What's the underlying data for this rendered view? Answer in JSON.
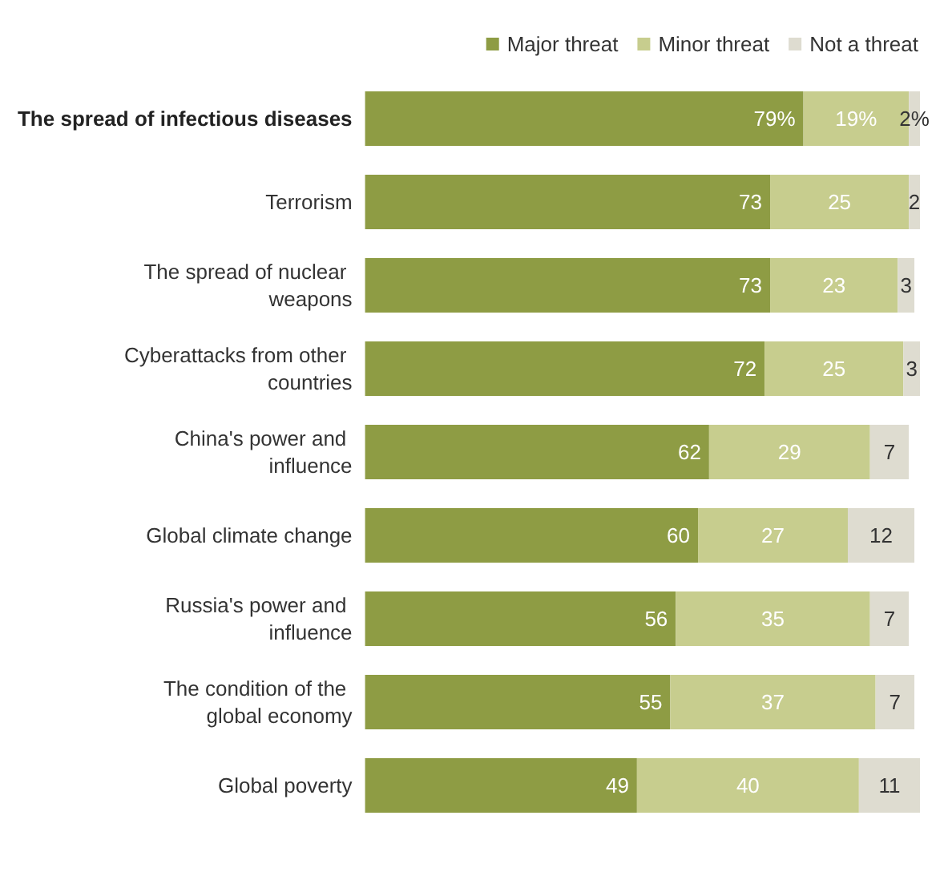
{
  "chart_data": {
    "type": "bar",
    "orientation": "horizontal",
    "stacked": true,
    "legend": "top right",
    "categories": [
      "The spread of infectious diseases",
      "Terrorism",
      "The spread of nuclear weapons",
      "Cyberattacks from other countries",
      "China's power and influence",
      "Global climate change",
      "Russia's power and influence",
      "The condition of the global economy",
      "Global poverty"
    ],
    "xlim": [
      0,
      100
    ],
    "series": [
      {
        "name": "Major threat",
        "color": "#8e9c44",
        "values": [
          79,
          73,
          73,
          72,
          62,
          60,
          56,
          55,
          49
        ],
        "value_labels": [
          "79%",
          "73",
          "73",
          "72",
          "62",
          "60",
          "56",
          "55",
          "49"
        ]
      },
      {
        "name": "Minor threat",
        "color": "#c7cd8e",
        "values": [
          19,
          25,
          23,
          25,
          29,
          27,
          35,
          37,
          40
        ],
        "value_labels": [
          "19%",
          "25",
          "23",
          "25",
          "29",
          "27",
          "35",
          "37",
          "40"
        ]
      },
      {
        "name": "Not a threat",
        "color": "#dedcd0",
        "values": [
          2,
          2,
          3,
          3,
          7,
          12,
          7,
          7,
          11
        ],
        "value_labels": [
          "2%",
          "2",
          "3",
          "3",
          "7",
          "12",
          "7",
          "7",
          "11"
        ]
      }
    ]
  }
}
